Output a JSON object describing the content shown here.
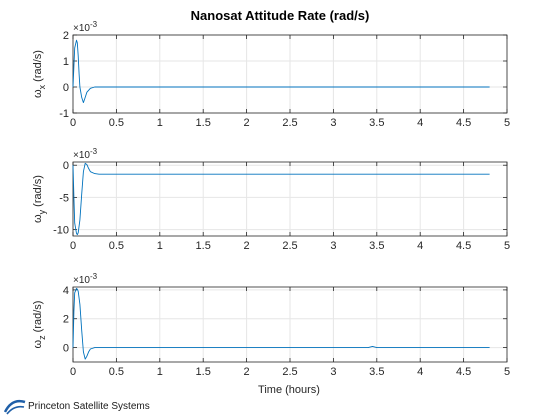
{
  "chart_data": {
    "type": "line",
    "title": "Nanosat Attitude Rate (rad/s)",
    "xlabel": "Time (hours)",
    "line_color": "#0072bd",
    "panels": [
      {
        "ylabel_symbol": "ω",
        "ylabel_sub": "x",
        "ylabel_unit": "(rad/s)",
        "exponent_label": "×10",
        "exponent_power": "-3",
        "ylim": [
          -1,
          2
        ],
        "yticks": [
          "-1",
          "0",
          "1",
          "2"
        ],
        "x": [
          0,
          0.01,
          0.02,
          0.04,
          0.05,
          0.06,
          0.07,
          0.08,
          0.1,
          0.12,
          0.14,
          0.16,
          0.2,
          0.25,
          0.3,
          0.5,
          1.0,
          2.0,
          3.0,
          4.0,
          4.8
        ],
        "y": [
          0.0,
          0.8,
          1.5,
          1.8,
          1.7,
          1.2,
          0.5,
          0.0,
          -0.4,
          -0.6,
          -0.4,
          -0.2,
          -0.05,
          0.0,
          0.0,
          0.0,
          0.0,
          0.0,
          0.0,
          0.0,
          0.0
        ]
      },
      {
        "ylabel_symbol": "ω",
        "ylabel_sub": "y",
        "ylabel_unit": "(rad/s)",
        "exponent_label": "×10",
        "exponent_power": "-3",
        "ylim": [
          -11,
          0.5
        ],
        "yticks": [
          "-10",
          "-5",
          "0"
        ],
        "x": [
          0,
          0.01,
          0.02,
          0.04,
          0.05,
          0.06,
          0.08,
          0.1,
          0.12,
          0.14,
          0.16,
          0.18,
          0.2,
          0.25,
          0.3,
          0.5,
          1.0,
          2.0,
          3.0,
          4.0,
          4.8
        ],
        "y": [
          0,
          -5,
          -9,
          -10.6,
          -10.8,
          -10.5,
          -8.5,
          -4.5,
          -1.0,
          0.3,
          0.1,
          -0.5,
          -1.0,
          -1.3,
          -1.4,
          -1.4,
          -1.4,
          -1.4,
          -1.4,
          -1.4,
          -1.4
        ]
      },
      {
        "ylabel_symbol": "ω",
        "ylabel_sub": "z",
        "ylabel_unit": "(rad/s)",
        "exponent_label": "×10",
        "exponent_power": "-3",
        "ylim": [
          -1,
          4.2
        ],
        "yticks": [
          "0",
          "2",
          "4"
        ],
        "x": [
          0,
          0.01,
          0.02,
          0.04,
          0.05,
          0.06,
          0.08,
          0.1,
          0.12,
          0.14,
          0.16,
          0.18,
          0.2,
          0.25,
          0.3,
          0.5,
          1.0,
          2.0,
          3.0,
          3.4,
          3.45,
          3.5,
          4.0,
          4.8
        ],
        "y": [
          0,
          2.5,
          3.8,
          4.1,
          4.05,
          3.9,
          3.0,
          1.2,
          -0.3,
          -0.8,
          -0.6,
          -0.3,
          -0.1,
          0.0,
          0.0,
          0.0,
          0.0,
          0.0,
          0.0,
          0.0,
          0.08,
          0.0,
          0.0,
          0.0
        ]
      }
    ],
    "xlim": [
      0,
      5
    ],
    "xticks": [
      "0",
      "0.5",
      "1",
      "1.5",
      "2",
      "2.5",
      "3",
      "3.5",
      "4",
      "4.5",
      "5"
    ],
    "grid": true
  },
  "footer": {
    "brand": "Princeton Satellite Systems",
    "logo_color": "#1f5fa8"
  }
}
